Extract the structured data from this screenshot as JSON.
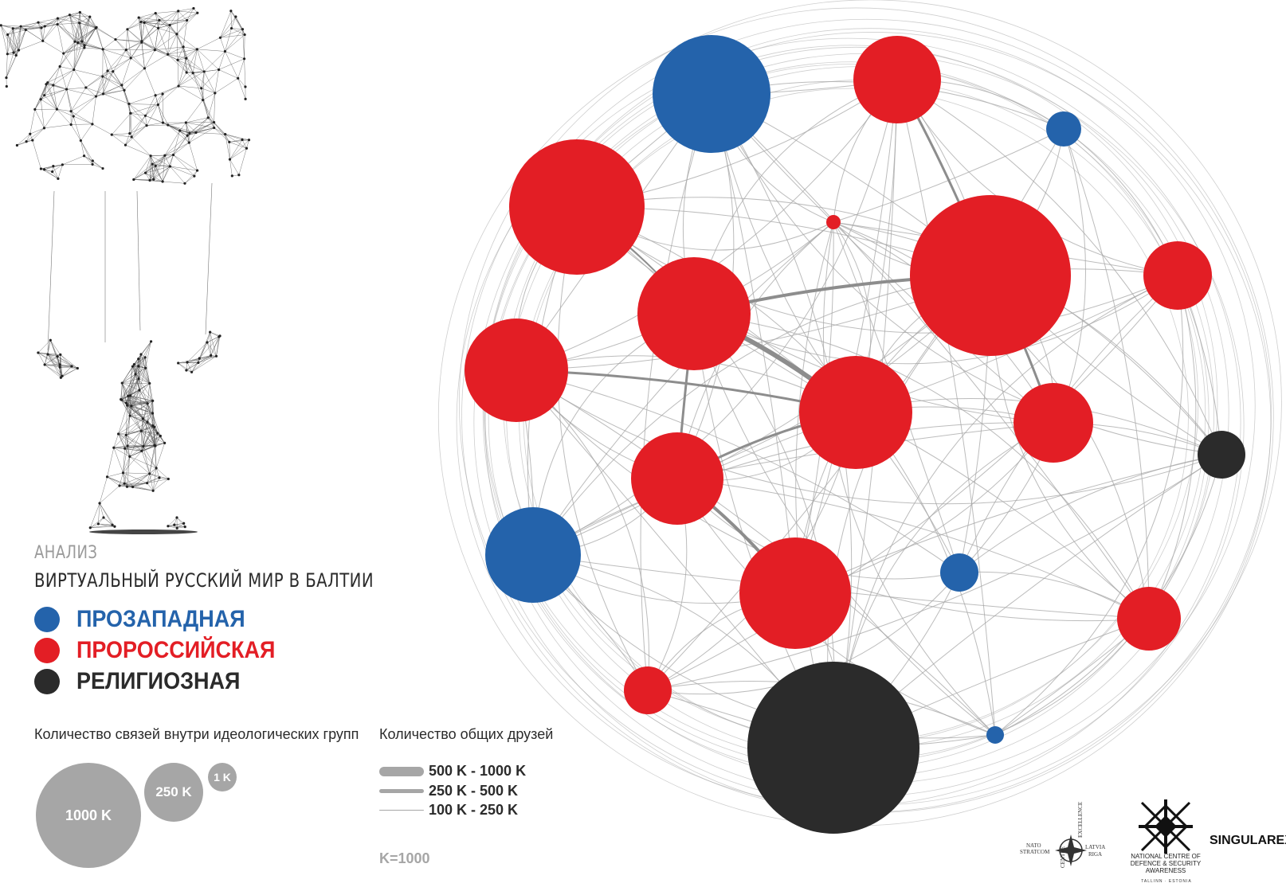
{
  "header": {
    "kicker": "АНАЛИЗ",
    "title": "ВИРТУАЛЬНЫЙ РУССКИЙ МИР В БАЛТИИ"
  },
  "legend": [
    {
      "label": "ПРОЗАПАДНАЯ",
      "color": "#2463ab"
    },
    {
      "label": "ПРОРОССИЙСКАЯ",
      "color": "#e31e25"
    },
    {
      "label": "РЕЛИГИОЗНАЯ",
      "color": "#2b2b2b"
    }
  ],
  "size_legend": {
    "title": "Количество связей внутри идеологических групп",
    "items": [
      {
        "label": "1000 K",
        "value": 1000
      },
      {
        "label": "250 K",
        "value": 250
      },
      {
        "label": "1 K",
        "value": 1
      }
    ]
  },
  "edge_legend": {
    "title": "Количество общих друзей",
    "items": [
      {
        "label": "500 K - 1000 K"
      },
      {
        "label": "250 K - 500 K"
      },
      {
        "label": "100 K - 250 K"
      }
    ]
  },
  "units_note": "K=1000",
  "colors": {
    "prowestern": "#2463ab",
    "prorussian": "#e31e25",
    "religious": "#2b2b2b",
    "edge": "#a6a6a6"
  },
  "logos": {
    "stratcom_words": [
      "NATO",
      "STRATCOM",
      "LATVIA",
      "RIGA",
      "CENTRE",
      "EXCELLENCE"
    ],
    "ncdsa_lines": [
      "NATIONAL CENTRE OF",
      "DEFENCE & SECURITY",
      "AWARENESS"
    ],
    "ncdsa_small": "TALLINN · ESTONIA",
    "brand": "SINGULAREX"
  }
}
